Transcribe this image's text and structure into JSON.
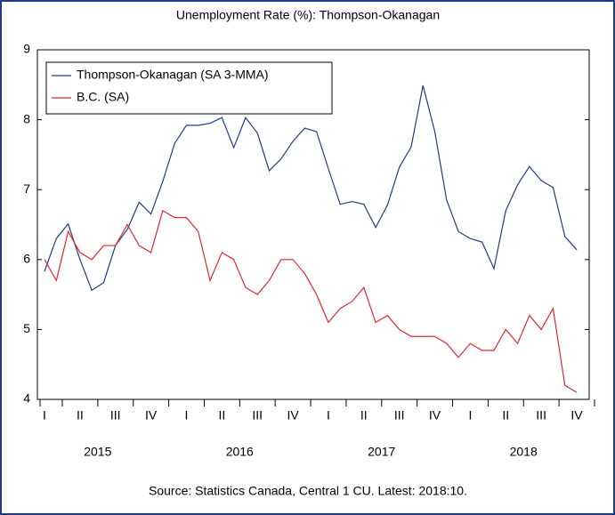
{
  "chart_data": {
    "type": "line",
    "title": "Unemployment Rate (%): Thompson-Okanagan",
    "source": "Source: Statistics Canada, Central 1 CU. Latest: 2018:10.",
    "categories": [
      "I",
      null,
      null,
      "II",
      null,
      null,
      "III",
      null,
      null,
      "IV",
      null,
      null,
      "I",
      null,
      null,
      "II",
      null,
      null,
      "III",
      null,
      null,
      "IV",
      null,
      null,
      "I",
      null,
      null,
      "II",
      null,
      null,
      "III",
      null,
      null,
      "IV",
      null,
      null,
      "I",
      null,
      null,
      "II",
      null,
      null,
      "III",
      null,
      null,
      "IV"
    ],
    "years": [
      "2015",
      "2016",
      "2017",
      "2018"
    ],
    "series": [
      {
        "name": "Thompson-Okanagan (SA 3-MMA)",
        "color": "#1f3c88",
        "values": [
          5.83,
          6.3,
          6.51,
          6.0,
          5.56,
          5.67,
          6.2,
          6.43,
          6.82,
          6.65,
          7.12,
          7.66,
          7.92,
          7.92,
          7.95,
          8.03,
          7.6,
          8.03,
          7.81,
          7.27,
          7.44,
          7.69,
          7.88,
          7.83,
          7.3,
          6.79,
          6.83,
          6.79,
          6.46,
          6.78,
          7.32,
          7.61,
          8.49,
          7.83,
          6.85,
          6.4,
          6.3,
          6.25,
          5.87,
          6.7,
          7.07,
          7.33,
          7.13,
          7.03,
          6.33,
          6.14
        ]
      },
      {
        "name": "B.C. (SA)",
        "color": "#e0282e",
        "values": [
          6.0,
          5.7,
          6.4,
          6.1,
          6.0,
          6.2,
          6.2,
          6.5,
          6.2,
          6.1,
          6.7,
          6.6,
          6.6,
          6.4,
          5.7,
          6.1,
          6.0,
          5.6,
          5.5,
          5.7,
          6.0,
          6.0,
          5.8,
          5.5,
          5.1,
          5.3,
          5.4,
          5.6,
          5.1,
          5.2,
          5.0,
          4.9,
          4.9,
          4.9,
          4.8,
          4.6,
          4.8,
          4.7,
          4.7,
          5.0,
          4.8,
          5.2,
          5.0,
          5.3,
          4.2,
          4.1
        ]
      }
    ],
    "ylim": [
      4,
      9
    ],
    "yticks": [
      4,
      5,
      6,
      7,
      8,
      9
    ],
    "legend": "top-left"
  }
}
